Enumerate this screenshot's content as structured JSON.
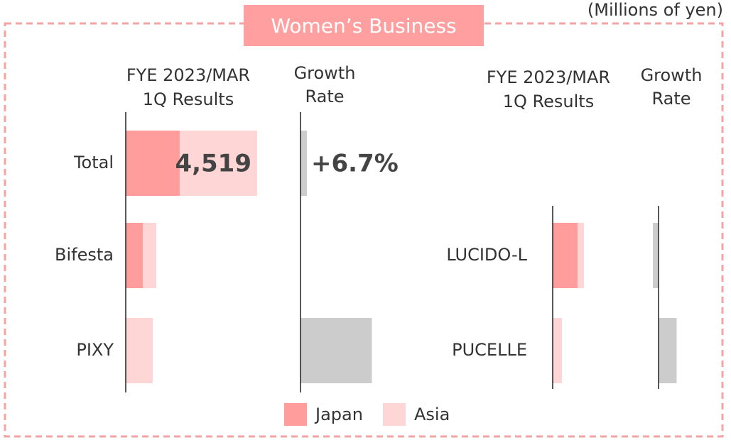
{
  "title": "Women’s Business",
  "unit": "(Millions of yen)",
  "chart_data": [
    {
      "type": "bar",
      "value_header": [
        "FYE 2023/MAR",
        "1Q Results"
      ],
      "growth_header": [
        "Growth",
        "Rate"
      ],
      "categories": [
        "Total",
        "Bifesta",
        "PIXY"
      ],
      "series": [
        {
          "name": "Japan",
          "color": "#ff9d9d",
          "values": [
            1856,
            586,
            0
          ]
        },
        {
          "name": "Asia",
          "color": "#ffd6d6",
          "values": [
            2663,
            464,
            928
          ]
        }
      ],
      "total_value": 4519,
      "total_label": "4,519",
      "xlim": [
        0,
        4519
      ],
      "growth": {
        "color": "#cccccc",
        "values": [
          6.7,
          0,
          75
        ],
        "value_labels": [
          "+6.7%",
          null,
          null
        ],
        "xlim": [
          0,
          100
        ]
      }
    },
    {
      "type": "bar",
      "value_header": [
        "FYE 2023/MAR",
        "1Q Results"
      ],
      "growth_header": [
        "Growth",
        "Rate"
      ],
      "categories": [
        "LUCIDO-L",
        "PUCELLE"
      ],
      "series": [
        {
          "color": "#ff9d9d",
          "values": [
            855,
            0
          ]
        },
        {
          "color": "#ffd6d6",
          "values": [
            220,
            318
          ]
        }
      ],
      "xlim": [
        0,
        4519
      ],
      "growth": {
        "color": "#cccccc",
        "values": [
          -6,
          19
        ],
        "xlim": [
          0,
          100
        ]
      }
    }
  ]
}
